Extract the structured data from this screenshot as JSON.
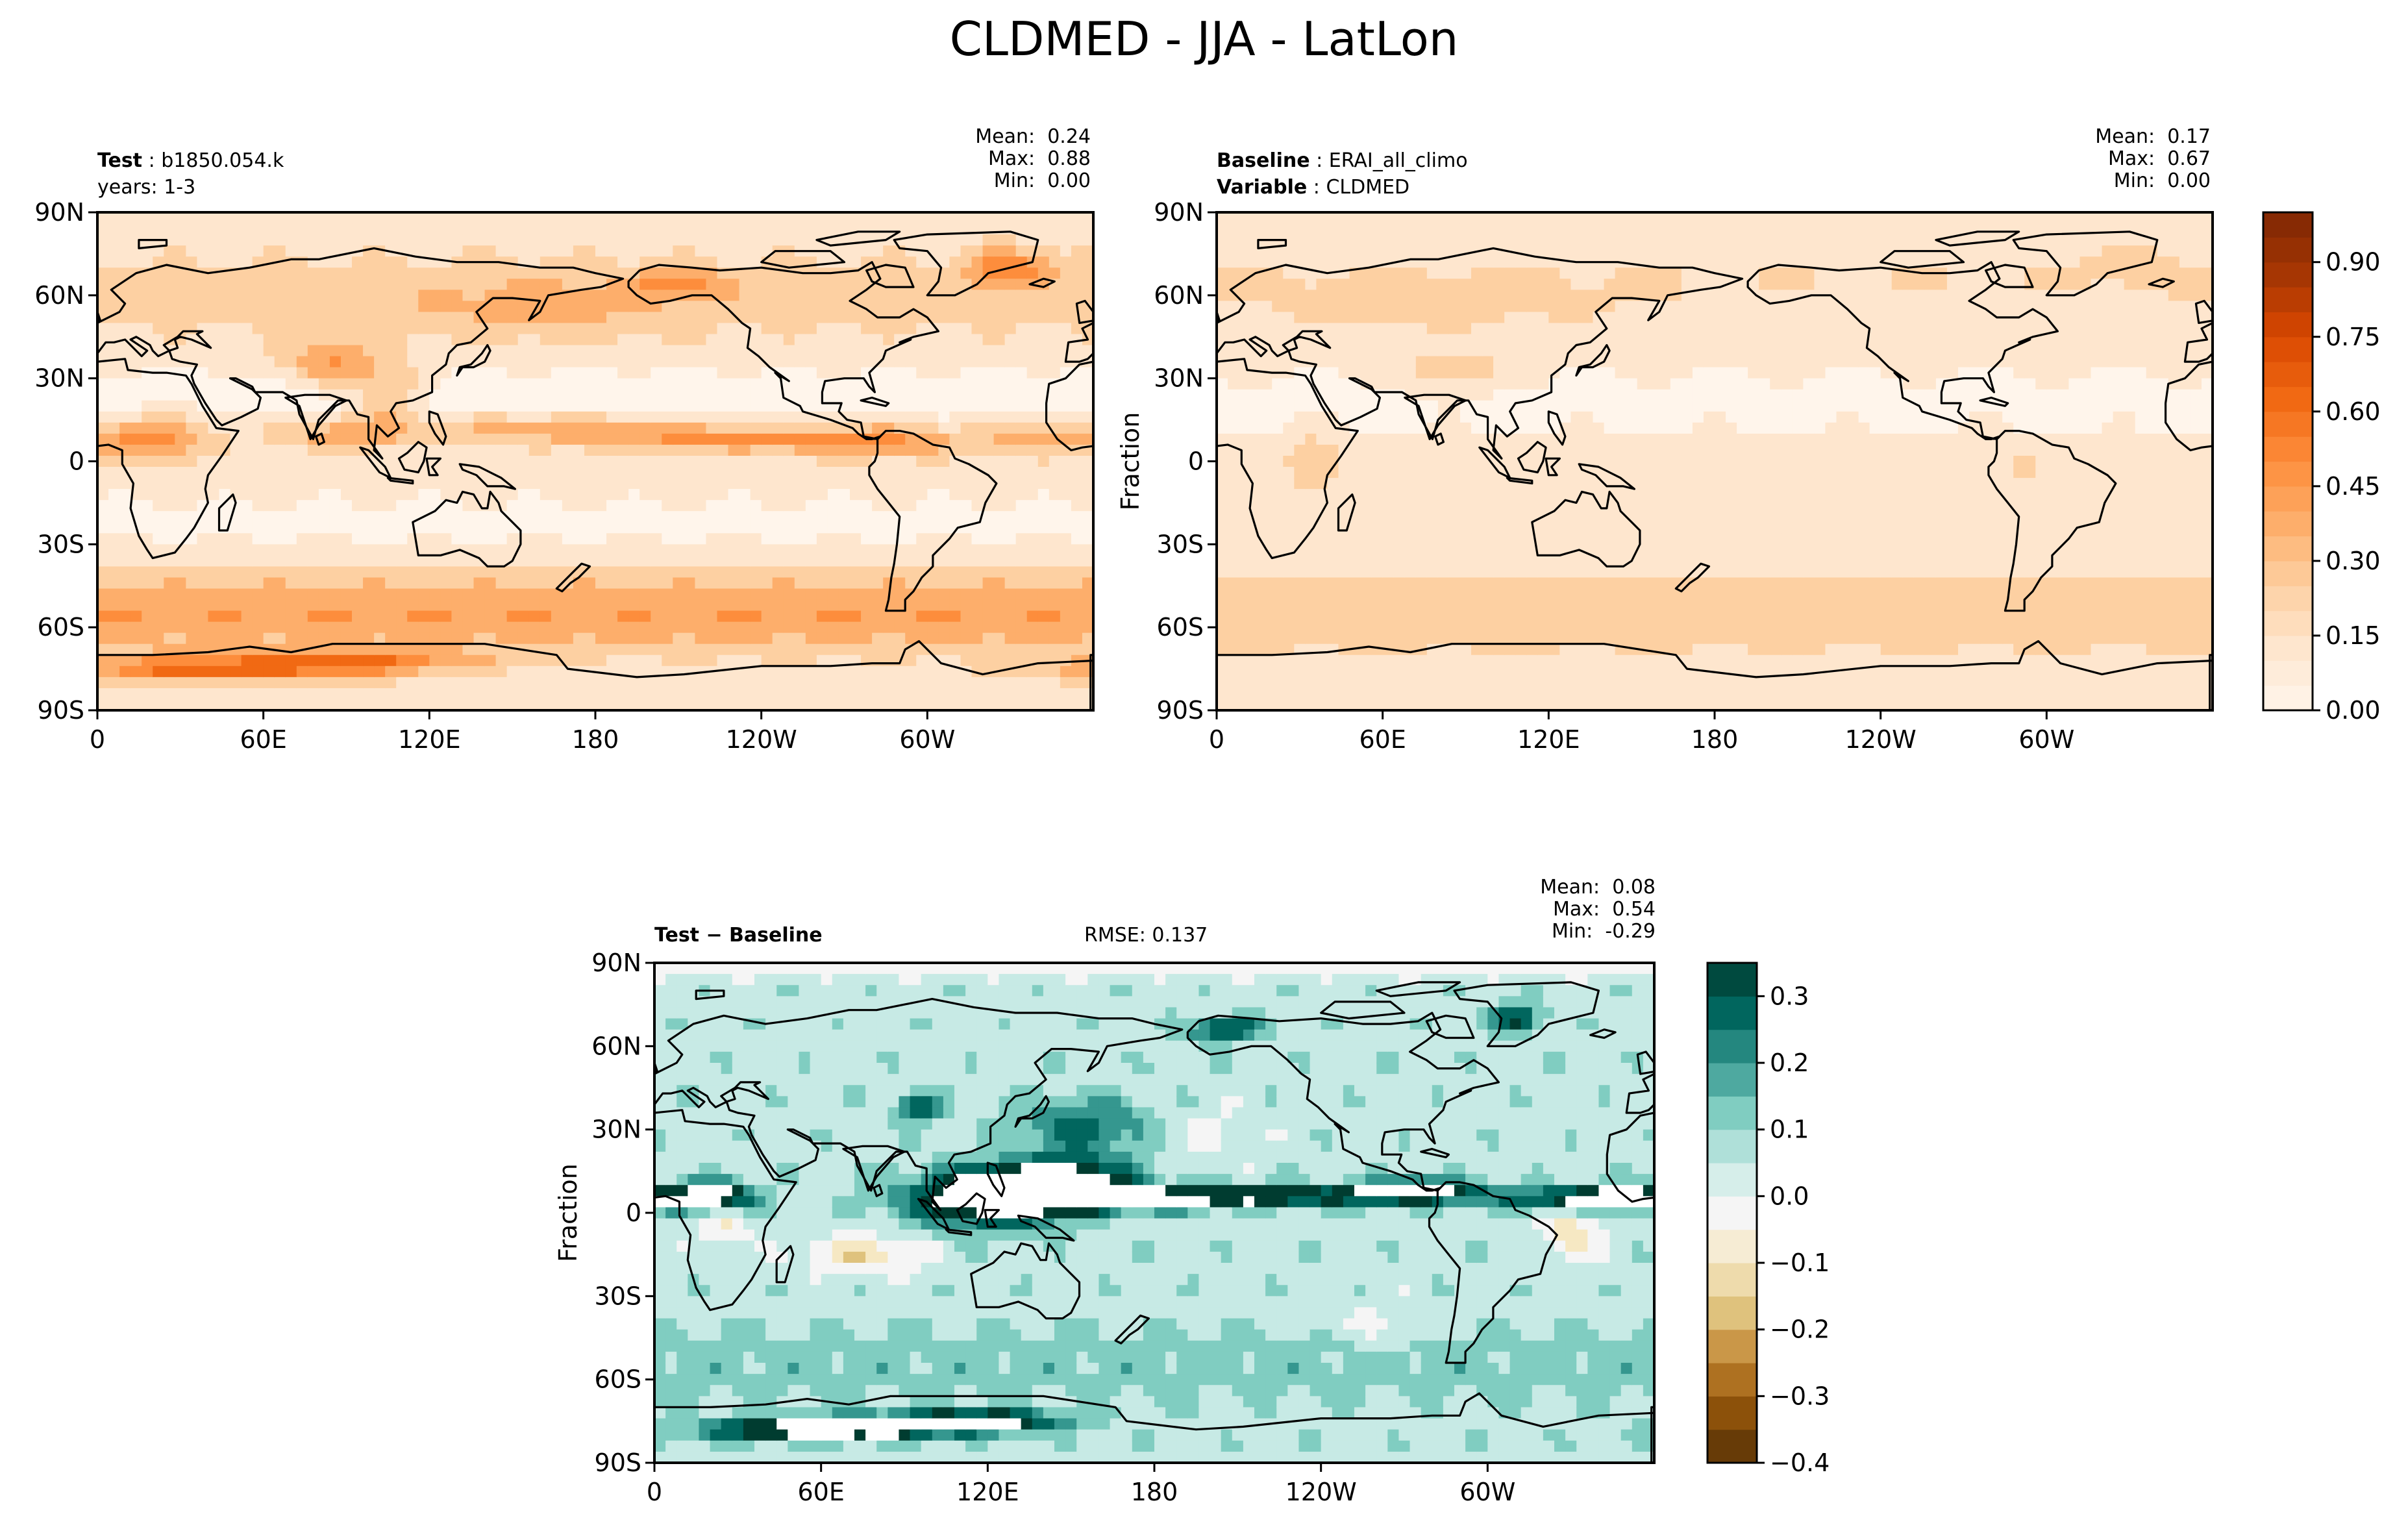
{
  "figure": {
    "title": "CLDMED - JJA - LatLon"
  },
  "panels": {
    "test": {
      "label_bold": "Test",
      "label_sep": ":",
      "label_value": "b1850.054.k",
      "line2": "years: 1-3",
      "stats": {
        "mean_label": "Mean:",
        "mean": "0.24",
        "max_label": "Max:",
        "max": "0.88",
        "min_label": "Min:",
        "min": "0.00"
      }
    },
    "baseline": {
      "label_bold": "Baseline",
      "label_sep": ":",
      "label_value": "ERAI_all_climo",
      "line2_bold": "Variable",
      "line2_sep": ":",
      "line2_value": "CLDMED",
      "ylabel": "Fraction",
      "stats": {
        "mean_label": "Mean:",
        "mean": "0.17",
        "max_label": "Max:",
        "max": "0.67",
        "min_label": "Min:",
        "min": "0.00"
      }
    },
    "diff": {
      "label_bold": "Test − Baseline",
      "rmse": "RMSE: 0.137",
      "ylabel": "Fraction",
      "stats": {
        "mean_label": "Mean:",
        "mean": "0.08",
        "max_label": "Max:",
        "max": "0.54",
        "min_label": "Min:",
        "min": "-0.29"
      }
    }
  },
  "colors": {
    "oranges": [
      "#fff5eb",
      "#fee6ce",
      "#fdd0a2",
      "#fdae6b",
      "#fd8d3c",
      "#f16913",
      "#d94801",
      "#a63603",
      "#7f2704"
    ],
    "brbg": [
      "#543005",
      "#8c510a",
      "#bf812d",
      "#dfc27d",
      "#f6e8c3",
      "#f5f5f5",
      "#c7eae5",
      "#80cdc1",
      "#35978f",
      "#01665e",
      "#003c30"
    ],
    "coast": "#000000"
  },
  "chart_data": [
    {
      "type": "heatmap",
      "name": "test",
      "xlabel": "",
      "ylabel": "",
      "xlim": [
        0,
        360
      ],
      "ylim": [
        -90,
        90
      ],
      "x_ticks": [
        "0",
        "60E",
        "120E",
        "180",
        "120W",
        "60W"
      ],
      "y_ticks": [
        "90N",
        "60N",
        "30N",
        "0",
        "30S",
        "60S",
        "90S"
      ],
      "colorbar": {
        "range": [
          0.0,
          1.0
        ],
        "ticks": [
          "0.00",
          "0.15",
          "0.30",
          "0.45",
          "0.60",
          "0.75",
          "0.90"
        ]
      },
      "stats": {
        "mean": 0.24,
        "max": 0.88,
        "min": 0.0
      }
    },
    {
      "type": "heatmap",
      "name": "baseline",
      "xlabel": "",
      "ylabel": "Fraction",
      "xlim": [
        0,
        360
      ],
      "ylim": [
        -90,
        90
      ],
      "x_ticks": [
        "0",
        "60E",
        "120E",
        "180",
        "120W",
        "60W"
      ],
      "y_ticks": [
        "90N",
        "60N",
        "30N",
        "0",
        "30S",
        "60S",
        "90S"
      ],
      "colorbar": {
        "range": [
          0.0,
          1.0
        ],
        "ticks": [
          "0.00",
          "0.15",
          "0.30",
          "0.45",
          "0.60",
          "0.75",
          "0.90"
        ]
      },
      "stats": {
        "mean": 0.17,
        "max": 0.67,
        "min": 0.0
      }
    },
    {
      "type": "heatmap",
      "name": "test-minus-baseline",
      "xlabel": "",
      "ylabel": "Fraction",
      "xlim": [
        0,
        360
      ],
      "ylim": [
        -90,
        90
      ],
      "x_ticks": [
        "0",
        "60E",
        "120E",
        "180",
        "120W",
        "60W"
      ],
      "y_ticks": [
        "90N",
        "60N",
        "30N",
        "0",
        "30S",
        "60S",
        "90S"
      ],
      "colorbar": {
        "range": [
          -0.4,
          0.35
        ],
        "ticks": [
          "0.3",
          "0.2",
          "0.1",
          "0.0",
          "−0.1",
          "−0.2",
          "−0.3",
          "−0.4"
        ]
      },
      "rmse": 0.137,
      "stats": {
        "mean": 0.08,
        "max": 0.54,
        "min": -0.29
      }
    }
  ]
}
